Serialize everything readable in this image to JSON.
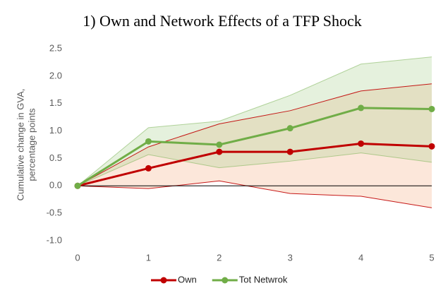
{
  "chart_data": {
    "type": "line",
    "title": "1) Own and Network Effects of a TFP Shock",
    "y_label": [
      "Cumulative change in GVA,",
      "percentage points"
    ],
    "x": [
      0,
      1,
      2,
      3,
      4,
      5
    ],
    "xlim": [
      0,
      5
    ],
    "xticks": [
      0,
      1,
      2,
      3,
      4,
      5
    ],
    "ylim": [
      -1,
      2.5
    ],
    "yticks": [
      {
        "value": -1,
        "label": "-1.0"
      },
      -0.5,
      {
        "value": 0,
        "label": "0.0"
      },
      0.5,
      {
        "value": 1,
        "label": "1.0"
      },
      1.5,
      {
        "value": 2,
        "label": "2.0"
      },
      2.5
    ],
    "legend": "bottom",
    "series": [
      {
        "name": "Own",
        "color": "#c00000",
        "band_color": "#f4b183",
        "values": [
          0,
          0.32,
          0.62,
          0.62,
          0.77,
          0.72
        ],
        "upper": [
          0,
          0.71,
          1.13,
          1.37,
          1.73,
          1.86
        ],
        "lower": [
          0,
          -0.05,
          0.09,
          -0.14,
          -0.19,
          -0.4
        ]
      },
      {
        "name": "Tot Netwrok",
        "color": "#70ad47",
        "band_color": "#a9d18e",
        "values": [
          0,
          0.81,
          0.75,
          1.05,
          1.42,
          1.4
        ],
        "upper": [
          0,
          1.06,
          1.18,
          1.65,
          2.22,
          2.35
        ],
        "lower": [
          0,
          0.57,
          0.33,
          0.45,
          0.6,
          0.43
        ]
      }
    ]
  }
}
